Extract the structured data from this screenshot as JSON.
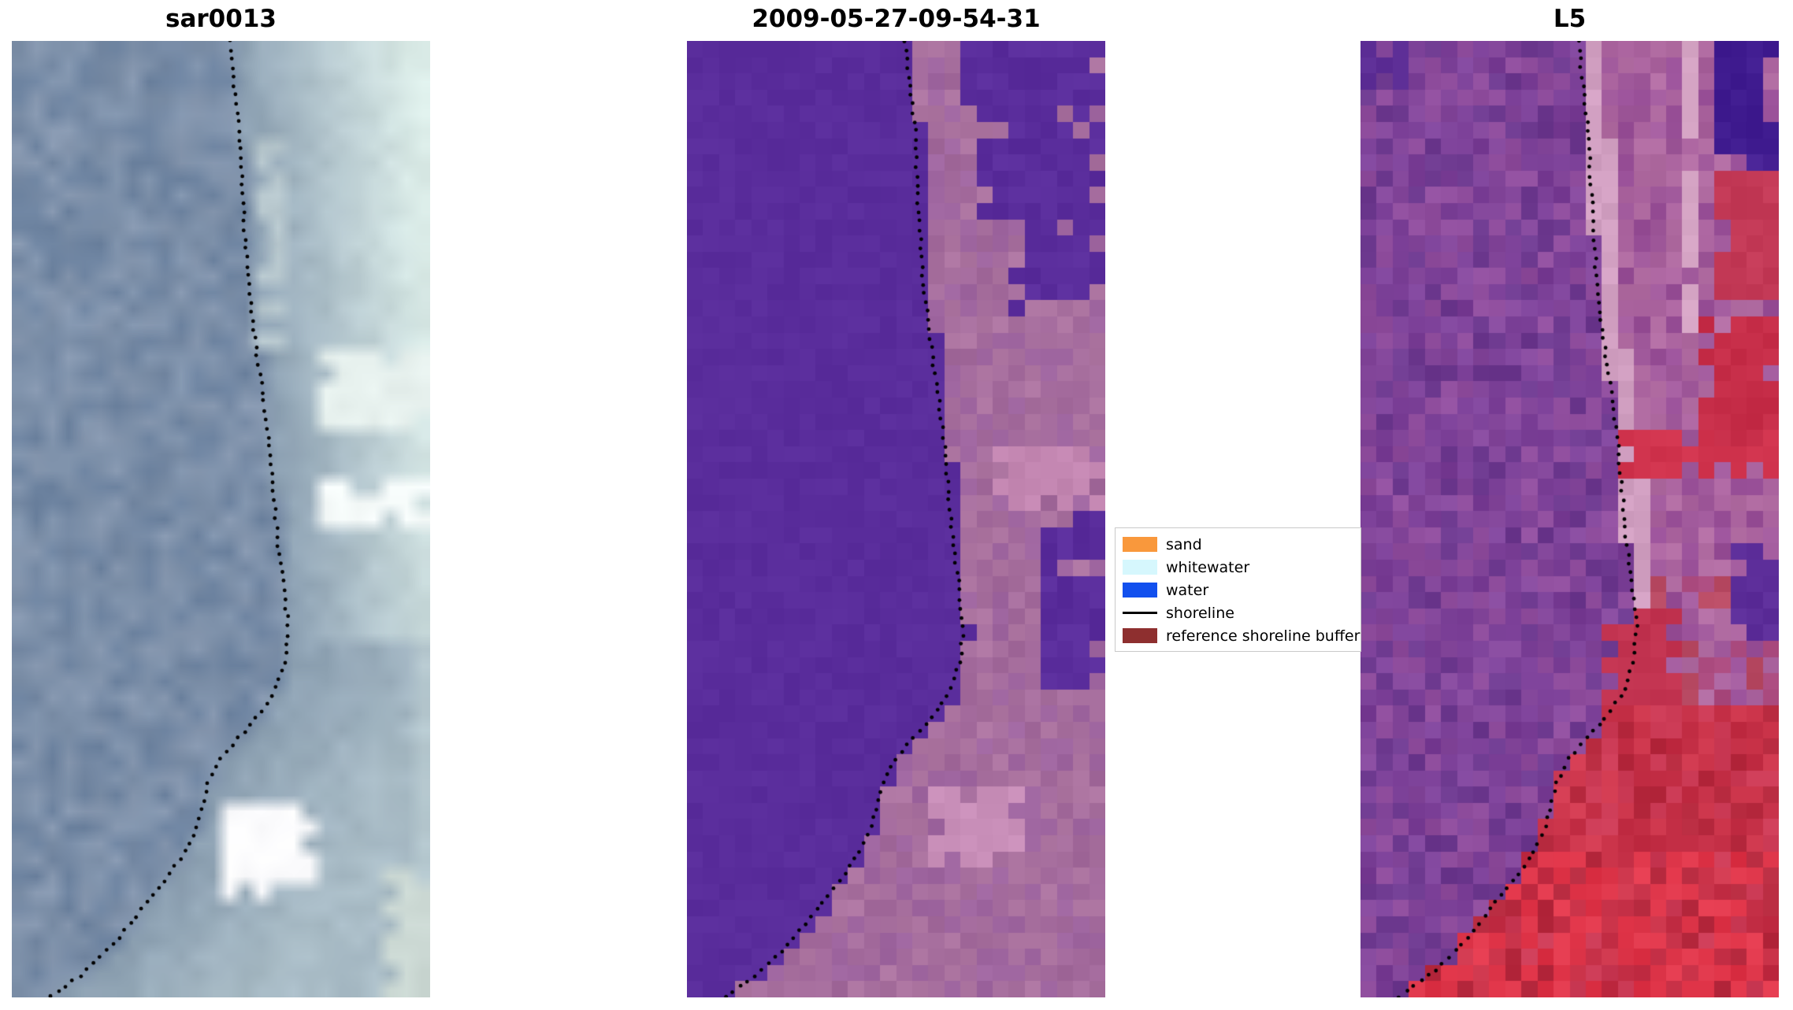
{
  "chart_data": {
    "type": "heatmap",
    "description": "Three-panel coastal satellite shoreline-detection figure",
    "panels": [
      {
        "title": "sar0013",
        "kind": "sar",
        "seed": 7,
        "cols": 26,
        "smooth": true,
        "water_colors": [
          "#7d90a9",
          "#7589a4",
          "#8295ae",
          "#6e84a1",
          "#8899b1"
        ],
        "land_base": "#8ea2b4",
        "land_pale": "#dcede9",
        "blocks": [
          {
            "x": 0.56,
            "y": 0.1,
            "w": 0.1,
            "h": 0.22,
            "color": "#b9c9cf"
          },
          {
            "x": 0.74,
            "y": 0.315,
            "w": 0.26,
            "h": 0.1,
            "color": "#e8f2ef"
          },
          {
            "x": 0.72,
            "y": 0.45,
            "w": 0.28,
            "h": 0.06,
            "color": "#f8fdfc"
          },
          {
            "x": 0.5,
            "y": 0.795,
            "w": 0.22,
            "h": 0.095,
            "color": "#fdfdff"
          },
          {
            "x": 0.9,
            "y": 0.86,
            "w": 0.1,
            "h": 0.14,
            "color": "#ccd9d4"
          }
        ]
      },
      {
        "title": "2009-05-27-09-54-31",
        "kind": "class",
        "seed": 13,
        "cols": 26,
        "smooth": false,
        "water_color": "#5a2d9c",
        "land_colors": [
          "#a76f9e",
          "#a2699b",
          "#ad75a1",
          "#9f66a0"
        ],
        "blocks": [
          {
            "x": 0.66,
            "y": 0.0,
            "w": 0.34,
            "h": 0.085,
            "color": "#5a2d9c"
          },
          {
            "x": 0.71,
            "y": 0.085,
            "w": 0.29,
            "h": 0.1,
            "color": "#5a2d9c"
          },
          {
            "x": 0.755,
            "y": 0.185,
            "w": 0.245,
            "h": 0.1,
            "color": "#5a2d9c"
          },
          {
            "x": 0.93,
            "y": 0.465,
            "w": 0.07,
            "h": 0.045,
            "color": "#5a2d9c"
          },
          {
            "x": 0.86,
            "y": 0.505,
            "w": 0.14,
            "h": 0.055,
            "color": "#5a2d9c"
          },
          {
            "x": 0.84,
            "y": 0.56,
            "w": 0.16,
            "h": 0.12,
            "color": "#5a2d9c"
          },
          {
            "x": 0.72,
            "y": 0.425,
            "w": 0.28,
            "h": 0.07,
            "color": "#c487b2"
          },
          {
            "x": 0.585,
            "y": 0.775,
            "w": 0.21,
            "h": 0.09,
            "color": "#c98fb9"
          }
        ]
      },
      {
        "title": "L5",
        "kind": "l5",
        "seed": 21,
        "cols": 26,
        "smooth": false,
        "water_colors": [
          "#7a3e96",
          "#85489c",
          "#6e3a90",
          "#8f4d9d",
          "#7f449b"
        ],
        "land_colors": [
          "#a15a9c",
          "#aa639e",
          "#984f97",
          "#b06ba1"
        ],
        "coast_color": "#d2a0c2",
        "land_zones": [
          {
            "y1": 0.56,
            "y2": 0.7,
            "prob": 0.45,
            "colors": [
              "#b84a63",
              "#aa4a7e"
            ]
          },
          {
            "y1": 0.7,
            "y2": 1.01,
            "prob": 1.0,
            "colors": [
              "#c22d44",
              "#d0394f",
              "#b72a3f",
              "#cb3a55"
            ]
          },
          {
            "y1": 0.84,
            "y2": 1.01,
            "prob": 0.5,
            "colors": [
              "#dd3246",
              "#e23a4e"
            ]
          }
        ],
        "blocks": [
          {
            "x": 0.0,
            "y": 0.0,
            "w": 0.1,
            "h": 0.055,
            "color": "#5d2e96"
          },
          {
            "x": 0.85,
            "y": 0.0,
            "w": 0.15,
            "h": 0.115,
            "color": "#401c90"
          },
          {
            "x": 0.93,
            "y": 0.115,
            "w": 0.07,
            "h": 0.075,
            "color": "#4b2598"
          },
          {
            "x": 0.86,
            "y": 0.14,
            "w": 0.14,
            "h": 0.13,
            "color": "#c43a57"
          },
          {
            "x": 0.8,
            "y": 0.285,
            "w": 0.2,
            "h": 0.155,
            "color": "#c62d48"
          },
          {
            "x": 0.62,
            "y": 0.405,
            "w": 0.38,
            "h": 0.055,
            "color": "#d1344e"
          },
          {
            "x": 0.9,
            "y": 0.52,
            "w": 0.1,
            "h": 0.11,
            "color": "#5c2d99"
          },
          {
            "x": 0.58,
            "y": 0.6,
            "w": 0.17,
            "h": 0.09,
            "color": "#c23350"
          },
          {
            "x": 0.775,
            "y": 0.0,
            "w": 0.025,
            "h": 0.3,
            "color": "#d7a6c6"
          }
        ]
      }
    ],
    "shoreline_path": [
      [
        0.52,
        0.0
      ],
      [
        0.53,
        0.04
      ],
      [
        0.545,
        0.09
      ],
      [
        0.55,
        0.14
      ],
      [
        0.555,
        0.19
      ],
      [
        0.565,
        0.25
      ],
      [
        0.58,
        0.31
      ],
      [
        0.6,
        0.37
      ],
      [
        0.615,
        0.42
      ],
      [
        0.625,
        0.47
      ],
      [
        0.635,
        0.52
      ],
      [
        0.65,
        0.57
      ],
      [
        0.66,
        0.61
      ],
      [
        0.655,
        0.645
      ],
      [
        0.63,
        0.68
      ],
      [
        0.59,
        0.705
      ],
      [
        0.55,
        0.725
      ],
      [
        0.5,
        0.75
      ],
      [
        0.47,
        0.775
      ],
      [
        0.455,
        0.8
      ],
      [
        0.44,
        0.825
      ],
      [
        0.41,
        0.85
      ],
      [
        0.37,
        0.875
      ],
      [
        0.325,
        0.9
      ],
      [
        0.28,
        0.925
      ],
      [
        0.23,
        0.95
      ],
      [
        0.17,
        0.975
      ],
      [
        0.09,
        1.0
      ]
    ],
    "legend": {
      "items": [
        {
          "label": "sand",
          "swatch": "patch",
          "color": "#f9983c"
        },
        {
          "label": "whitewater",
          "swatch": "patch",
          "color": "#d6f7fd"
        },
        {
          "label": "water",
          "swatch": "patch",
          "color": "#1250ee"
        },
        {
          "label": "shoreline",
          "swatch": "line",
          "color": "#000000"
        },
        {
          "label": "reference shoreline buffer",
          "swatch": "patch",
          "color": "#8e2f2f"
        }
      ]
    }
  }
}
